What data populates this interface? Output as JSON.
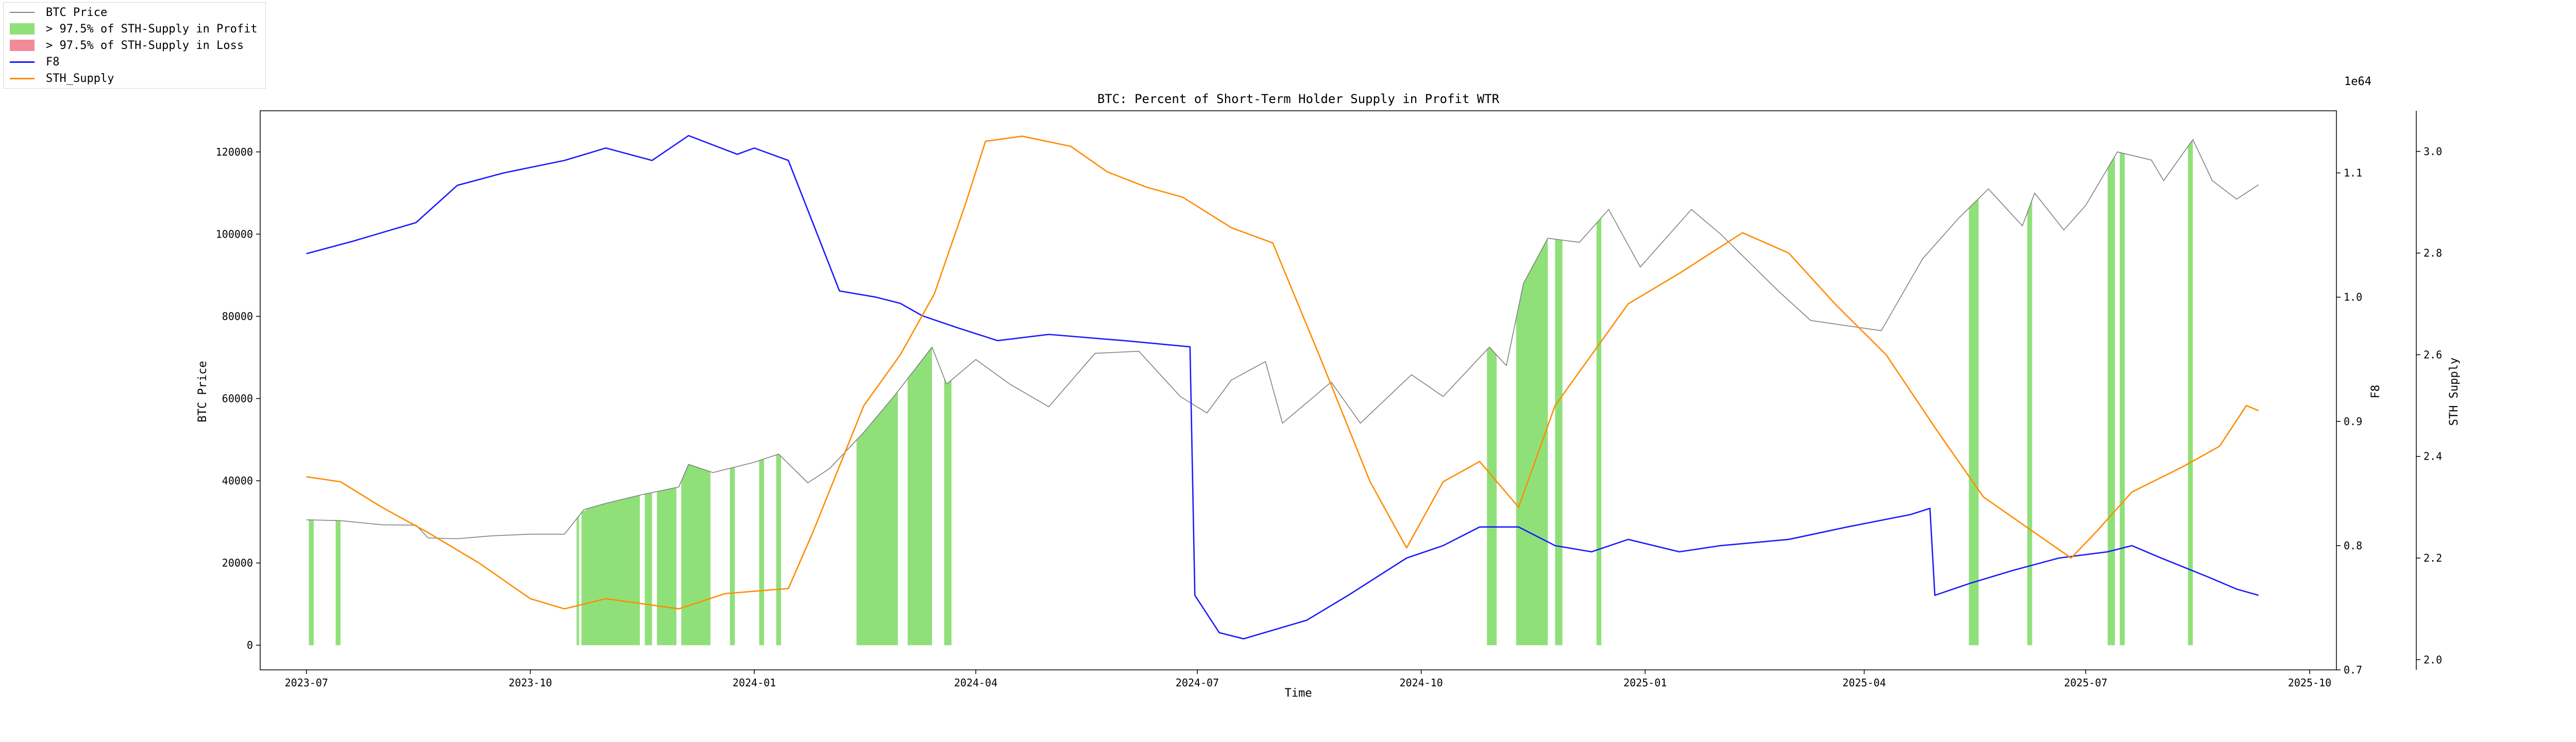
{
  "chart_data": {
    "type": "line",
    "title": "BTC: Percent of Short-Term Holder Supply in Profit WTR",
    "xlabel": "Time",
    "x_ticks": [
      "2023-07",
      "2023-10",
      "2024-01",
      "2024-04",
      "2024-07",
      "2024-10",
      "2025-01",
      "2025-04",
      "2025-07",
      "2025-10"
    ],
    "x_range": [
      "2023-06-12",
      "2025-10-12"
    ],
    "axes": {
      "left": {
        "label": "BTC Price",
        "ylim": [
          -6000,
          130000
        ],
        "ticks": [
          "0",
          "20000",
          "40000",
          "60000",
          "80000",
          "100000",
          "120000"
        ]
      },
      "right1": {
        "label": "F8",
        "ylim": [
          0.7,
          1.15
        ],
        "ticks": [
          "0.7",
          "0.8",
          "0.9",
          "1.0",
          "1.1"
        ]
      },
      "right2": {
        "label": "STH Supply",
        "offset_text": "1e64",
        "ylim": [
          1.98,
          3.08
        ],
        "ticks": [
          "2.0",
          "2.2",
          "2.4",
          "2.6",
          "2.8",
          "3.0"
        ]
      }
    },
    "legend": {
      "placement": "top-left, outside axes",
      "entries": [
        {
          "label": "BTC Price",
          "kind": "line",
          "color": "#808080"
        },
        {
          "label": "> 97.5% of STH-Supply in Profit",
          "kind": "patch",
          "color": "#90e07a"
        },
        {
          "label": "> 97.5% of STH-Supply in Loss",
          "kind": "patch",
          "color": "#f28a9a"
        },
        {
          "label": "F8",
          "kind": "line",
          "color": "#1a1aff"
        },
        {
          "label": "STH_Supply",
          "kind": "line",
          "color": "#ff8c00"
        }
      ]
    },
    "series": [
      {
        "name": "BTC Price",
        "axis": "left",
        "color": "#808080",
        "points": [
          [
            "2023-07-01",
            30500
          ],
          [
            "2023-07-15",
            30300
          ],
          [
            "2023-08-01",
            29300
          ],
          [
            "2023-08-15",
            29200
          ],
          [
            "2023-08-20",
            26100
          ],
          [
            "2023-09-01",
            25900
          ],
          [
            "2023-09-15",
            26600
          ],
          [
            "2023-10-01",
            27000
          ],
          [
            "2023-10-15",
            27000
          ],
          [
            "2023-10-23",
            33000
          ],
          [
            "2023-11-01",
            34500
          ],
          [
            "2023-11-15",
            36500
          ],
          [
            "2023-12-01",
            38500
          ],
          [
            "2023-12-05",
            44000
          ],
          [
            "2023-12-15",
            42000
          ],
          [
            "2024-01-01",
            44500
          ],
          [
            "2024-01-11",
            46500
          ],
          [
            "2024-01-23",
            39500
          ],
          [
            "2024-02-01",
            43000
          ],
          [
            "2024-02-15",
            51800
          ],
          [
            "2024-02-28",
            61000
          ],
          [
            "2024-03-14",
            72500
          ],
          [
            "2024-03-20",
            63500
          ],
          [
            "2024-04-01",
            69500
          ],
          [
            "2024-04-15",
            63500
          ],
          [
            "2024-05-01",
            58000
          ],
          [
            "2024-05-20",
            71000
          ],
          [
            "2024-06-07",
            71500
          ],
          [
            "2024-06-24",
            60500
          ],
          [
            "2024-07-05",
            56500
          ],
          [
            "2024-07-15",
            64500
          ],
          [
            "2024-07-29",
            69000
          ],
          [
            "2024-08-05",
            54000
          ],
          [
            "2024-08-25",
            64000
          ],
          [
            "2024-09-06",
            54000
          ],
          [
            "2024-09-27",
            65800
          ],
          [
            "2024-10-10",
            60500
          ],
          [
            "2024-10-29",
            72500
          ],
          [
            "2024-11-05",
            68000
          ],
          [
            "2024-11-12",
            88000
          ],
          [
            "2024-11-22",
            99000
          ],
          [
            "2024-12-05",
            98000
          ],
          [
            "2024-12-17",
            106000
          ],
          [
            "2024-12-30",
            92000
          ],
          [
            "2025-01-20",
            106000
          ],
          [
            "2025-02-01",
            100000
          ],
          [
            "2025-02-25",
            86000
          ],
          [
            "2025-03-10",
            79000
          ],
          [
            "2025-04-08",
            76500
          ],
          [
            "2025-04-25",
            94000
          ],
          [
            "2025-05-10",
            104000
          ],
          [
            "2025-05-22",
            111000
          ],
          [
            "2025-06-05",
            102000
          ],
          [
            "2025-06-10",
            110000
          ],
          [
            "2025-06-22",
            101000
          ],
          [
            "2025-07-01",
            107000
          ],
          [
            "2025-07-14",
            120000
          ],
          [
            "2025-07-28",
            118000
          ],
          [
            "2025-08-02",
            113000
          ],
          [
            "2025-08-14",
            123000
          ],
          [
            "2025-08-22",
            113000
          ],
          [
            "2025-09-01",
            108500
          ],
          [
            "2025-09-10",
            112000
          ]
        ]
      },
      {
        "name": "F8",
        "axis": "right1",
        "color": "#1a1aff",
        "points": [
          [
            "2023-07-01",
            1.035
          ],
          [
            "2023-07-20",
            1.045
          ],
          [
            "2023-08-15",
            1.06
          ],
          [
            "2023-09-01",
            1.09
          ],
          [
            "2023-09-20",
            1.1
          ],
          [
            "2023-10-15",
            1.11
          ],
          [
            "2023-11-01",
            1.12
          ],
          [
            "2023-11-20",
            1.11
          ],
          [
            "2023-12-05",
            1.13
          ],
          [
            "2023-12-25",
            1.115
          ],
          [
            "2024-01-01",
            1.12
          ],
          [
            "2024-01-15",
            1.11
          ],
          [
            "2024-01-25",
            1.06
          ],
          [
            "2024-02-05",
            1.005
          ],
          [
            "2024-02-20",
            1.0
          ],
          [
            "2024-03-01",
            0.995
          ],
          [
            "2024-03-10",
            0.985
          ],
          [
            "2024-03-25",
            0.975
          ],
          [
            "2024-04-10",
            0.965
          ],
          [
            "2024-05-01",
            0.97
          ],
          [
            "2024-06-01",
            0.965
          ],
          [
            "2024-06-28",
            0.96
          ],
          [
            "2024-06-30",
            0.76
          ],
          [
            "2024-07-10",
            0.73
          ],
          [
            "2024-07-20",
            0.725
          ],
          [
            "2024-08-15",
            0.74
          ],
          [
            "2024-09-01",
            0.76
          ],
          [
            "2024-09-25",
            0.79
          ],
          [
            "2024-10-10",
            0.8
          ],
          [
            "2024-10-25",
            0.815
          ],
          [
            "2024-11-10",
            0.815
          ],
          [
            "2024-11-25",
            0.8
          ],
          [
            "2024-12-10",
            0.795
          ],
          [
            "2024-12-25",
            0.805
          ],
          [
            "2025-01-15",
            0.795
          ],
          [
            "2025-02-01",
            0.8
          ],
          [
            "2025-03-01",
            0.805
          ],
          [
            "2025-03-25",
            0.815
          ],
          [
            "2025-04-20",
            0.825
          ],
          [
            "2025-04-28",
            0.83
          ],
          [
            "2025-04-30",
            0.76
          ],
          [
            "2025-05-15",
            0.77
          ],
          [
            "2025-06-01",
            0.78
          ],
          [
            "2025-06-20",
            0.79
          ],
          [
            "2025-07-10",
            0.795
          ],
          [
            "2025-07-20",
            0.8
          ],
          [
            "2025-08-01",
            0.79
          ],
          [
            "2025-08-20",
            0.775
          ],
          [
            "2025-09-01",
            0.765
          ],
          [
            "2025-09-10",
            0.76
          ]
        ]
      },
      {
        "name": "STH_Supply",
        "axis": "right2",
        "color": "#ff8c00",
        "points": [
          [
            "2023-07-01",
            2.36
          ],
          [
            "2023-07-15",
            2.35
          ],
          [
            "2023-08-01",
            2.3
          ],
          [
            "2023-08-20",
            2.25
          ],
          [
            "2023-09-10",
            2.19
          ],
          [
            "2023-10-01",
            2.12
          ],
          [
            "2023-10-15",
            2.1
          ],
          [
            "2023-11-01",
            2.12
          ],
          [
            "2023-12-01",
            2.1
          ],
          [
            "2023-12-20",
            2.13
          ],
          [
            "2024-01-15",
            2.14
          ],
          [
            "2024-01-25",
            2.25
          ],
          [
            "2024-02-15",
            2.5
          ],
          [
            "2024-03-01",
            2.6
          ],
          [
            "2024-03-15",
            2.72
          ],
          [
            "2024-03-28",
            2.9
          ],
          [
            "2024-04-05",
            3.02
          ],
          [
            "2024-04-20",
            3.03
          ],
          [
            "2024-05-10",
            3.01
          ],
          [
            "2024-05-25",
            2.96
          ],
          [
            "2024-06-10",
            2.93
          ],
          [
            "2024-06-25",
            2.91
          ],
          [
            "2024-07-15",
            2.85
          ],
          [
            "2024-08-01",
            2.82
          ],
          [
            "2024-08-20",
            2.6
          ],
          [
            "2024-09-10",
            2.35
          ],
          [
            "2024-09-25",
            2.22
          ],
          [
            "2024-10-10",
            2.35
          ],
          [
            "2024-10-25",
            2.39
          ],
          [
            "2024-11-10",
            2.3
          ],
          [
            "2024-11-25",
            2.5
          ],
          [
            "2024-12-10",
            2.6
          ],
          [
            "2024-12-25",
            2.7
          ],
          [
            "2025-01-15",
            2.76
          ],
          [
            "2025-02-10",
            2.84
          ],
          [
            "2025-03-01",
            2.8
          ],
          [
            "2025-03-20",
            2.7
          ],
          [
            "2025-04-10",
            2.6
          ],
          [
            "2025-05-01",
            2.45
          ],
          [
            "2025-05-20",
            2.32
          ],
          [
            "2025-06-10",
            2.25
          ],
          [
            "2025-06-25",
            2.2
          ],
          [
            "2025-07-05",
            2.25
          ],
          [
            "2025-07-20",
            2.33
          ],
          [
            "2025-08-10",
            2.38
          ],
          [
            "2025-08-25",
            2.42
          ],
          [
            "2025-09-05",
            2.5
          ],
          [
            "2025-09-10",
            2.49
          ]
        ]
      }
    ],
    "profit_regions": [
      [
        "2023-07-02",
        "2023-07-04"
      ],
      [
        "2023-07-13",
        "2023-07-15"
      ],
      [
        "2023-10-20",
        "2023-10-21"
      ],
      [
        "2023-10-22",
        "2023-11-15"
      ],
      [
        "2023-11-17",
        "2023-11-20"
      ],
      [
        "2023-11-22",
        "2023-11-30"
      ],
      [
        "2023-12-02",
        "2023-12-14"
      ],
      [
        "2023-12-22",
        "2023-12-24"
      ],
      [
        "2024-01-03",
        "2024-01-05"
      ],
      [
        "2024-01-10",
        "2024-01-12"
      ],
      [
        "2024-02-12",
        "2024-02-29"
      ],
      [
        "2024-03-04",
        "2024-03-14"
      ],
      [
        "2024-03-19",
        "2024-03-22"
      ],
      [
        "2024-10-28",
        "2024-11-01"
      ],
      [
        "2024-11-09",
        "2024-11-22"
      ],
      [
        "2024-11-25",
        "2024-11-28"
      ],
      [
        "2024-12-12",
        "2024-12-14"
      ],
      [
        "2025-05-14",
        "2025-05-18"
      ],
      [
        "2025-06-07",
        "2025-06-09"
      ],
      [
        "2025-07-10",
        "2025-07-13"
      ],
      [
        "2025-07-15",
        "2025-07-17"
      ],
      [
        "2025-08-12",
        "2025-08-14"
      ]
    ],
    "loss_regions": []
  }
}
